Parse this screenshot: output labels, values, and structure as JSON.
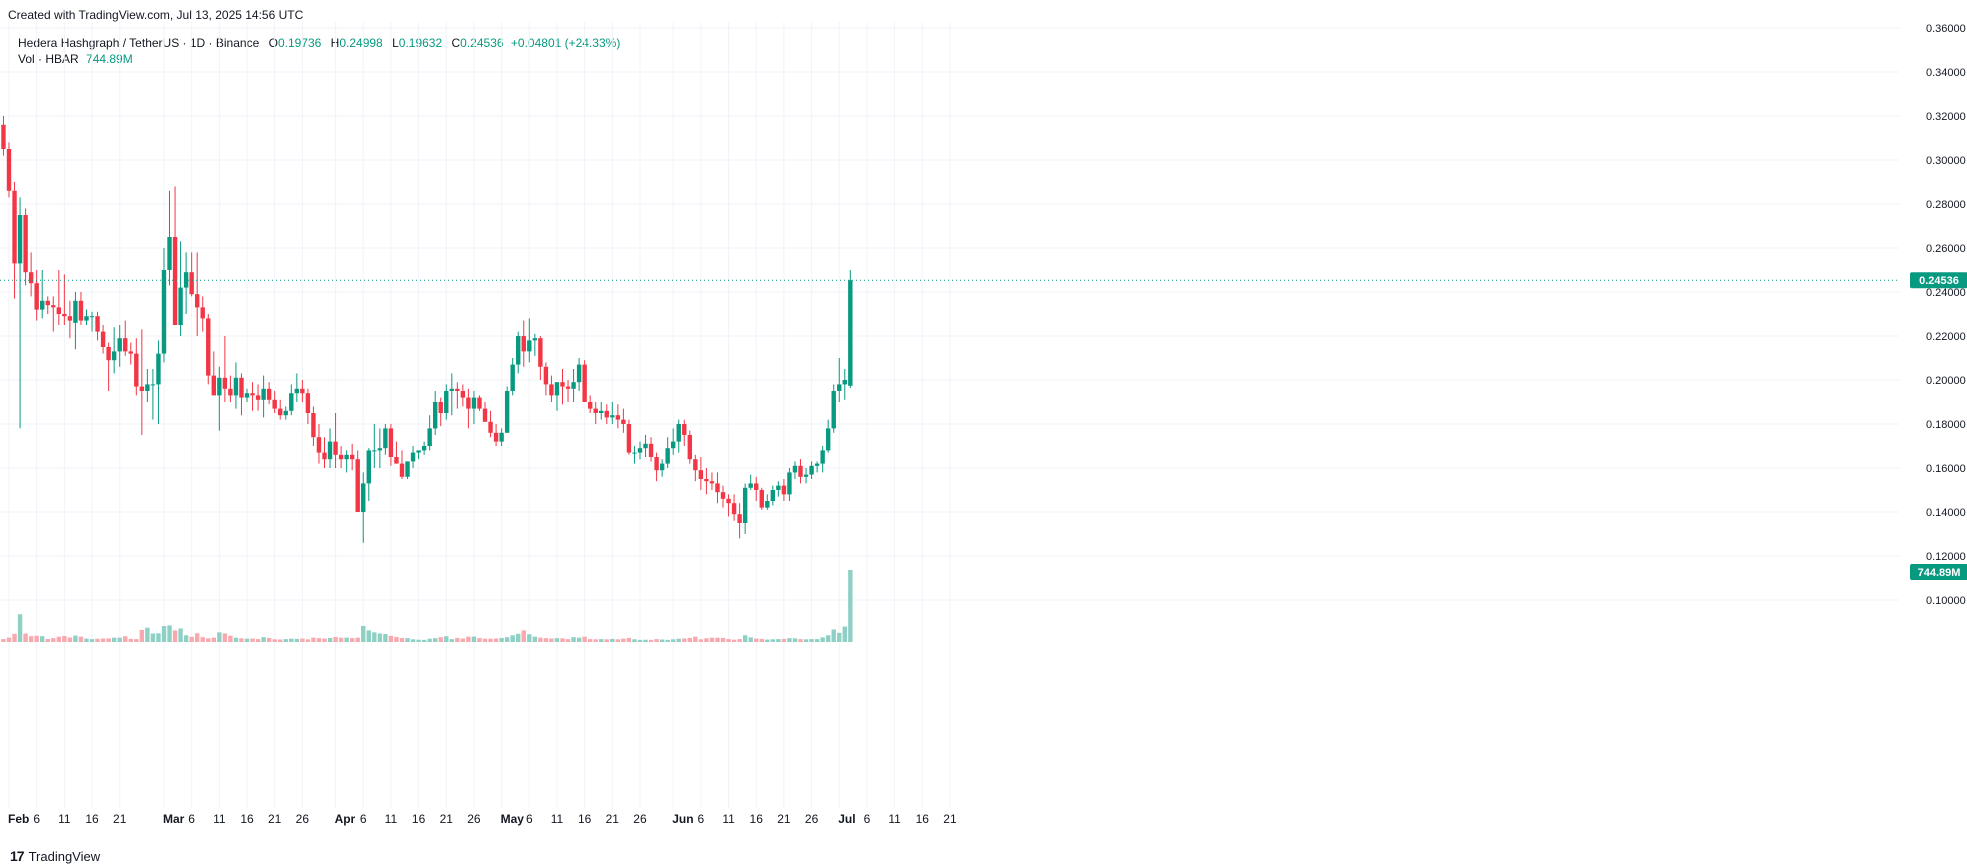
{
  "caption": "Created with TradingView.com, Jul 13, 2025 14:56 UTC",
  "legend": {
    "symbol": "Hedera Hashgraph / TetherUS · 1D · Binance",
    "o_label": "O",
    "o": "0.19736",
    "h_label": "H",
    "h": "0.24998",
    "l_label": "L",
    "l": "0.19632",
    "c_label": "C",
    "c": "0.24536",
    "change": "+0.04801 (+24.33%)",
    "vol_label": "Vol · HBAR",
    "vol": "744.89M"
  },
  "footer": {
    "brand": "TradingView"
  },
  "colors": {
    "up": "#089981",
    "down": "#F23645",
    "vol_up": "#8FD0C5",
    "vol_down": "#F7A9AE",
    "grid": "#F0F3FA"
  },
  "chart_data": {
    "type": "candlestick",
    "price_axis": {
      "ylim": [
        0.09,
        0.36
      ],
      "ticks": [
        "0.10000",
        "0.12000",
        "0.14000",
        "0.16000",
        "0.18000",
        "0.20000",
        "0.22000",
        "0.24000",
        "0.26000",
        "0.28000",
        "0.30000",
        "0.32000",
        "0.34000",
        "0.36000"
      ],
      "last_price_label": "0.24536",
      "volume_label": "744.89M"
    },
    "x_axis": {
      "start_date": "2025-02-01",
      "end_date": "2025-07-22",
      "ticks": [
        {
          "date": "2025-02-01",
          "label": "Feb",
          "major": true
        },
        {
          "date": "2025-02-06",
          "label": "6"
        },
        {
          "date": "2025-02-11",
          "label": "11"
        },
        {
          "date": "2025-02-16",
          "label": "16"
        },
        {
          "date": "2025-02-21",
          "label": "21"
        },
        {
          "date": "2025-03-01",
          "label": "Mar",
          "major": true
        },
        {
          "date": "2025-03-06",
          "label": "6"
        },
        {
          "date": "2025-03-11",
          "label": "11"
        },
        {
          "date": "2025-03-16",
          "label": "16"
        },
        {
          "date": "2025-03-21",
          "label": "21"
        },
        {
          "date": "2025-03-26",
          "label": "26"
        },
        {
          "date": "2025-04-01",
          "label": "Apr",
          "major": true
        },
        {
          "date": "2025-04-06",
          "label": "6"
        },
        {
          "date": "2025-04-11",
          "label": "11"
        },
        {
          "date": "2025-04-16",
          "label": "16"
        },
        {
          "date": "2025-04-21",
          "label": "21"
        },
        {
          "date": "2025-04-26",
          "label": "26"
        },
        {
          "date": "2025-05-01",
          "label": "May",
          "major": true
        },
        {
          "date": "2025-05-06",
          "label": "6"
        },
        {
          "date": "2025-05-11",
          "label": "11"
        },
        {
          "date": "2025-05-16",
          "label": "16"
        },
        {
          "date": "2025-05-21",
          "label": "21"
        },
        {
          "date": "2025-05-26",
          "label": "26"
        },
        {
          "date": "2025-06-01",
          "label": "Jun",
          "major": true
        },
        {
          "date": "2025-06-06",
          "label": "6"
        },
        {
          "date": "2025-06-11",
          "label": "11"
        },
        {
          "date": "2025-06-16",
          "label": "16"
        },
        {
          "date": "2025-06-21",
          "label": "21"
        },
        {
          "date": "2025-06-26",
          "label": "26"
        },
        {
          "date": "2025-07-01",
          "label": "Jul",
          "major": true
        },
        {
          "date": "2025-07-06",
          "label": "6"
        },
        {
          "date": "2025-07-11",
          "label": "11"
        },
        {
          "date": "2025-07-16",
          "label": "16"
        },
        {
          "date": "2025-07-21",
          "label": "21"
        }
      ]
    },
    "volume_max": 744.89,
    "first_candle_date": "2025-01-31",
    "ohlcv": [
      [
        0.316,
        0.32,
        0.302,
        0.305,
        30
      ],
      [
        0.305,
        0.308,
        0.283,
        0.286,
        46
      ],
      [
        0.286,
        0.29,
        0.237,
        0.253,
        85
      ],
      [
        0.253,
        0.283,
        0.178,
        0.275,
        287
      ],
      [
        0.275,
        0.278,
        0.243,
        0.249,
        88
      ],
      [
        0.249,
        0.258,
        0.238,
        0.244,
        60
      ],
      [
        0.244,
        0.25,
        0.227,
        0.232,
        65
      ],
      [
        0.232,
        0.25,
        0.228,
        0.236,
        60
      ],
      [
        0.236,
        0.238,
        0.23,
        0.234,
        32
      ],
      [
        0.234,
        0.238,
        0.222,
        0.233,
        40
      ],
      [
        0.233,
        0.25,
        0.225,
        0.23,
        55
      ],
      [
        0.23,
        0.248,
        0.225,
        0.229,
        62
      ],
      [
        0.229,
        0.236,
        0.219,
        0.227,
        46
      ],
      [
        0.226,
        0.24,
        0.214,
        0.236,
        66
      ],
      [
        0.236,
        0.24,
        0.225,
        0.227,
        55
      ],
      [
        0.227,
        0.232,
        0.225,
        0.229,
        35
      ],
      [
        0.229,
        0.231,
        0.222,
        0.229,
        30
      ],
      [
        0.229,
        0.231,
        0.218,
        0.222,
        34
      ],
      [
        0.222,
        0.225,
        0.212,
        0.215,
        36
      ],
      [
        0.215,
        0.217,
        0.195,
        0.209,
        38
      ],
      [
        0.209,
        0.224,
        0.203,
        0.213,
        45
      ],
      [
        0.213,
        0.225,
        0.206,
        0.219,
        45
      ],
      [
        0.219,
        0.227,
        0.211,
        0.213,
        60
      ],
      [
        0.213,
        0.217,
        0.207,
        0.212,
        32
      ],
      [
        0.212,
        0.219,
        0.193,
        0.197,
        30
      ],
      [
        0.197,
        0.223,
        0.175,
        0.195,
        125
      ],
      [
        0.195,
        0.205,
        0.19,
        0.198,
        148
      ],
      [
        0.198,
        0.205,
        0.182,
        0.198,
        88
      ],
      [
        0.198,
        0.218,
        0.18,
        0.212,
        90
      ],
      [
        0.212,
        0.26,
        0.208,
        0.25,
        165
      ],
      [
        0.25,
        0.286,
        0.243,
        0.265,
        172
      ],
      [
        0.265,
        0.288,
        0.238,
        0.225,
        120
      ],
      [
        0.225,
        0.263,
        0.22,
        0.242,
        140
      ],
      [
        0.242,
        0.258,
        0.23,
        0.249,
        70
      ],
      [
        0.249,
        0.258,
        0.238,
        0.239,
        54
      ],
      [
        0.239,
        0.258,
        0.22,
        0.233,
        90
      ],
      [
        0.233,
        0.238,
        0.222,
        0.228,
        50
      ],
      [
        0.228,
        0.23,
        0.198,
        0.202,
        38
      ],
      [
        0.202,
        0.213,
        0.196,
        0.193,
        45
      ],
      [
        0.193,
        0.206,
        0.177,
        0.201,
        100
      ],
      [
        0.201,
        0.22,
        0.19,
        0.196,
        88
      ],
      [
        0.196,
        0.202,
        0.19,
        0.193,
        64
      ],
      [
        0.193,
        0.208,
        0.187,
        0.201,
        44
      ],
      [
        0.201,
        0.203,
        0.184,
        0.192,
        38
      ],
      [
        0.192,
        0.196,
        0.19,
        0.194,
        34
      ],
      [
        0.194,
        0.199,
        0.186,
        0.193,
        36
      ],
      [
        0.193,
        0.198,
        0.186,
        0.191,
        30
      ],
      [
        0.191,
        0.202,
        0.183,
        0.196,
        50
      ],
      [
        0.196,
        0.199,
        0.189,
        0.191,
        42
      ],
      [
        0.191,
        0.195,
        0.185,
        0.187,
        28
      ],
      [
        0.187,
        0.191,
        0.182,
        0.184,
        26
      ],
      [
        0.184,
        0.188,
        0.182,
        0.186,
        30
      ],
      [
        0.186,
        0.198,
        0.184,
        0.194,
        34
      ],
      [
        0.194,
        0.203,
        0.19,
        0.196,
        32
      ],
      [
        0.196,
        0.2,
        0.19,
        0.194,
        35
      ],
      [
        0.194,
        0.196,
        0.18,
        0.185,
        28
      ],
      [
        0.185,
        0.188,
        0.17,
        0.174,
        45
      ],
      [
        0.174,
        0.18,
        0.162,
        0.167,
        40
      ],
      [
        0.167,
        0.174,
        0.16,
        0.164,
        35
      ],
      [
        0.164,
        0.178,
        0.16,
        0.172,
        42
      ],
      [
        0.172,
        0.185,
        0.16,
        0.166,
        52
      ],
      [
        0.166,
        0.17,
        0.16,
        0.164,
        44
      ],
      [
        0.164,
        0.168,
        0.158,
        0.166,
        46
      ],
      [
        0.166,
        0.171,
        0.159,
        0.164,
        40
      ],
      [
        0.164,
        0.168,
        0.14,
        0.14,
        45
      ],
      [
        0.14,
        0.158,
        0.126,
        0.153,
        166
      ],
      [
        0.153,
        0.169,
        0.145,
        0.168,
        120
      ],
      [
        0.168,
        0.18,
        0.16,
        0.168,
        100
      ],
      [
        0.168,
        0.178,
        0.16,
        0.169,
        88
      ],
      [
        0.169,
        0.18,
        0.166,
        0.178,
        82
      ],
      [
        0.178,
        0.18,
        0.161,
        0.165,
        64
      ],
      [
        0.165,
        0.172,
        0.162,
        0.162,
        52
      ],
      [
        0.162,
        0.168,
        0.155,
        0.156,
        42
      ],
      [
        0.156,
        0.163,
        0.155,
        0.163,
        40
      ],
      [
        0.163,
        0.17,
        0.16,
        0.167,
        28
      ],
      [
        0.167,
        0.168,
        0.164,
        0.168,
        24
      ],
      [
        0.168,
        0.172,
        0.166,
        0.17,
        22
      ],
      [
        0.17,
        0.184,
        0.168,
        0.178,
        34
      ],
      [
        0.178,
        0.195,
        0.175,
        0.19,
        40
      ],
      [
        0.19,
        0.192,
        0.179,
        0.185,
        50
      ],
      [
        0.185,
        0.198,
        0.182,
        0.195,
        60
      ],
      [
        0.195,
        0.203,
        0.184,
        0.196,
        30
      ],
      [
        0.196,
        0.199,
        0.187,
        0.195,
        42
      ],
      [
        0.195,
        0.198,
        0.188,
        0.192,
        36
      ],
      [
        0.192,
        0.196,
        0.178,
        0.187,
        55
      ],
      [
        0.187,
        0.195,
        0.18,
        0.192,
        56
      ],
      [
        0.192,
        0.193,
        0.186,
        0.187,
        40
      ],
      [
        0.187,
        0.19,
        0.182,
        0.181,
        35
      ],
      [
        0.181,
        0.186,
        0.174,
        0.176,
        34
      ],
      [
        0.176,
        0.18,
        0.17,
        0.172,
        36
      ],
      [
        0.172,
        0.178,
        0.17,
        0.176,
        42
      ],
      [
        0.176,
        0.197,
        0.176,
        0.195,
        50
      ],
      [
        0.195,
        0.21,
        0.193,
        0.207,
        70
      ],
      [
        0.207,
        0.222,
        0.203,
        0.22,
        85
      ],
      [
        0.22,
        0.227,
        0.206,
        0.213,
        120
      ],
      [
        0.213,
        0.228,
        0.208,
        0.218,
        80
      ],
      [
        0.218,
        0.221,
        0.211,
        0.219,
        55
      ],
      [
        0.219,
        0.22,
        0.2,
        0.206,
        45
      ],
      [
        0.206,
        0.208,
        0.193,
        0.198,
        40
      ],
      [
        0.198,
        0.202,
        0.19,
        0.193,
        36
      ],
      [
        0.193,
        0.198,
        0.186,
        0.199,
        40
      ],
      [
        0.199,
        0.205,
        0.189,
        0.197,
        38
      ],
      [
        0.197,
        0.2,
        0.19,
        0.196,
        30
      ],
      [
        0.196,
        0.205,
        0.19,
        0.199,
        50
      ],
      [
        0.199,
        0.21,
        0.195,
        0.207,
        45
      ],
      [
        0.207,
        0.209,
        0.19,
        0.19,
        55
      ],
      [
        0.19,
        0.193,
        0.185,
        0.187,
        30
      ],
      [
        0.187,
        0.19,
        0.18,
        0.185,
        28
      ],
      [
        0.185,
        0.19,
        0.182,
        0.186,
        30
      ],
      [
        0.186,
        0.189,
        0.18,
        0.183,
        28
      ],
      [
        0.183,
        0.19,
        0.18,
        0.184,
        32
      ],
      [
        0.184,
        0.189,
        0.178,
        0.182,
        28
      ],
      [
        0.182,
        0.187,
        0.176,
        0.18,
        35
      ],
      [
        0.18,
        0.182,
        0.166,
        0.167,
        42
      ],
      [
        0.167,
        0.17,
        0.162,
        0.167,
        28
      ],
      [
        0.167,
        0.172,
        0.164,
        0.169,
        22
      ],
      [
        0.169,
        0.175,
        0.165,
        0.171,
        24
      ],
      [
        0.171,
        0.174,
        0.163,
        0.165,
        22
      ],
      [
        0.165,
        0.167,
        0.154,
        0.159,
        30
      ],
      [
        0.159,
        0.164,
        0.156,
        0.162,
        26
      ],
      [
        0.162,
        0.174,
        0.16,
        0.169,
        22
      ],
      [
        0.169,
        0.178,
        0.166,
        0.172,
        28
      ],
      [
        0.172,
        0.182,
        0.167,
        0.18,
        34
      ],
      [
        0.18,
        0.182,
        0.17,
        0.175,
        36
      ],
      [
        0.175,
        0.177,
        0.162,
        0.164,
        42
      ],
      [
        0.164,
        0.166,
        0.154,
        0.159,
        55
      ],
      [
        0.159,
        0.165,
        0.15,
        0.155,
        28
      ],
      [
        0.155,
        0.16,
        0.148,
        0.154,
        38
      ],
      [
        0.154,
        0.158,
        0.15,
        0.153,
        45
      ],
      [
        0.153,
        0.158,
        0.144,
        0.149,
        44
      ],
      [
        0.149,
        0.152,
        0.142,
        0.146,
        42
      ],
      [
        0.146,
        0.148,
        0.138,
        0.144,
        30
      ],
      [
        0.144,
        0.148,
        0.136,
        0.139,
        24
      ],
      [
        0.139,
        0.144,
        0.128,
        0.135,
        30
      ],
      [
        0.135,
        0.153,
        0.13,
        0.151,
        70
      ],
      [
        0.151,
        0.157,
        0.15,
        0.153,
        48
      ],
      [
        0.153,
        0.156,
        0.145,
        0.15,
        36
      ],
      [
        0.15,
        0.151,
        0.141,
        0.142,
        32
      ],
      [
        0.142,
        0.148,
        0.141,
        0.145,
        25
      ],
      [
        0.145,
        0.152,
        0.143,
        0.15,
        28
      ],
      [
        0.15,
        0.154,
        0.147,
        0.152,
        30
      ],
      [
        0.152,
        0.155,
        0.145,
        0.148,
        32
      ],
      [
        0.148,
        0.16,
        0.145,
        0.158,
        40
      ],
      [
        0.158,
        0.163,
        0.155,
        0.161,
        38
      ],
      [
        0.161,
        0.164,
        0.153,
        0.156,
        30
      ],
      [
        0.156,
        0.16,
        0.153,
        0.157,
        28
      ],
      [
        0.157,
        0.163,
        0.155,
        0.161,
        30
      ],
      [
        0.161,
        0.163,
        0.158,
        0.162,
        30
      ],
      [
        0.162,
        0.17,
        0.158,
        0.168,
        48
      ],
      [
        0.168,
        0.182,
        0.167,
        0.178,
        70
      ],
      [
        0.178,
        0.198,
        0.176,
        0.195,
        130
      ],
      [
        0.195,
        0.21,
        0.19,
        0.198,
        95
      ],
      [
        0.198,
        0.205,
        0.191,
        0.2,
        160
      ],
      [
        0.19736,
        0.24998,
        0.19632,
        0.24536,
        744.89
      ]
    ]
  }
}
